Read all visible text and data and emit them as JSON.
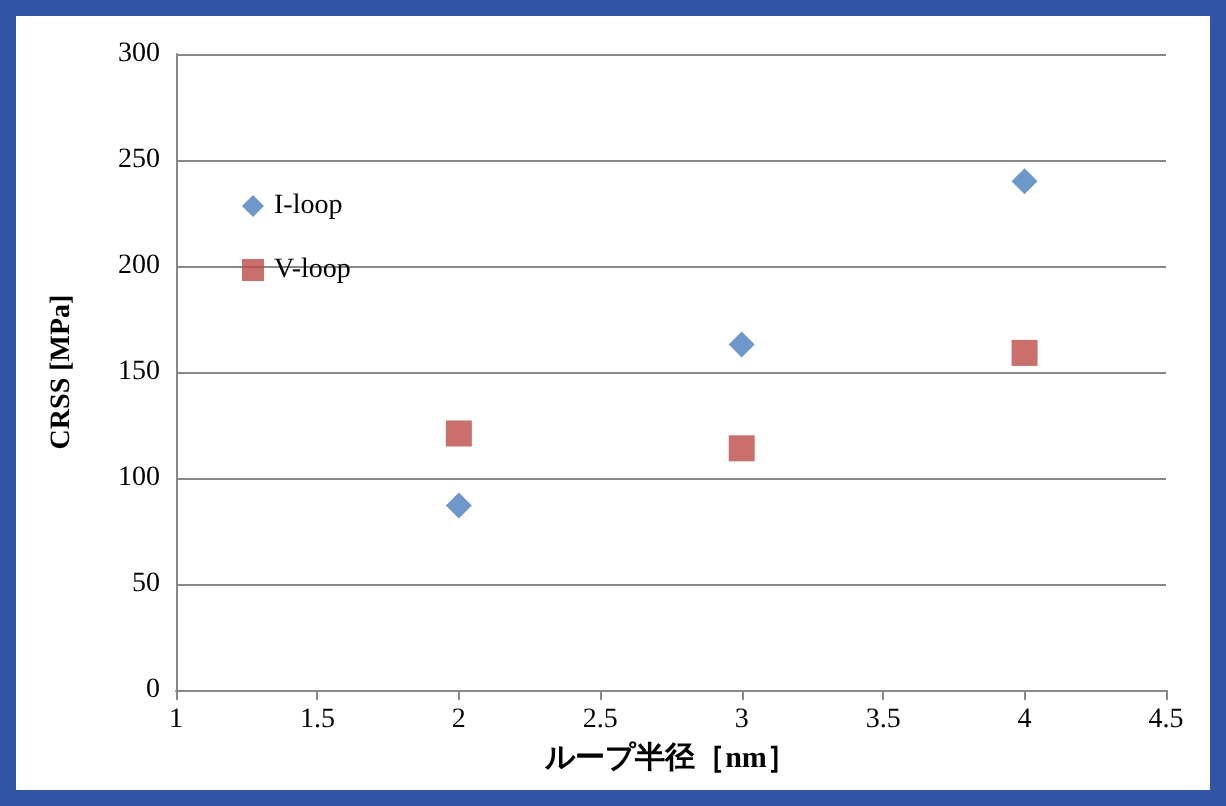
{
  "chart_data": {
    "type": "scatter",
    "xlabel": "ループ半径［nm］",
    "ylabel": "CRSS [MPa]",
    "xlim": [
      1,
      4.5
    ],
    "xticks": [
      1,
      1.5,
      2,
      2.5,
      3,
      3.5,
      4,
      4.5
    ],
    "ylim": [
      0,
      300
    ],
    "yticks": [
      0,
      50,
      100,
      150,
      200,
      250,
      300
    ],
    "grid": "y",
    "legend": "top left",
    "series": [
      {
        "name": "I-loop",
        "color": "#4a7ebb",
        "marker": "diamond",
        "x": [
          2,
          3,
          4
        ],
        "values": [
          87,
          163,
          240
        ]
      },
      {
        "name": "V-loop",
        "color": "#be4b48",
        "marker": "square",
        "x": [
          2,
          3,
          4
        ],
        "values": [
          121,
          114,
          159
        ]
      }
    ]
  }
}
